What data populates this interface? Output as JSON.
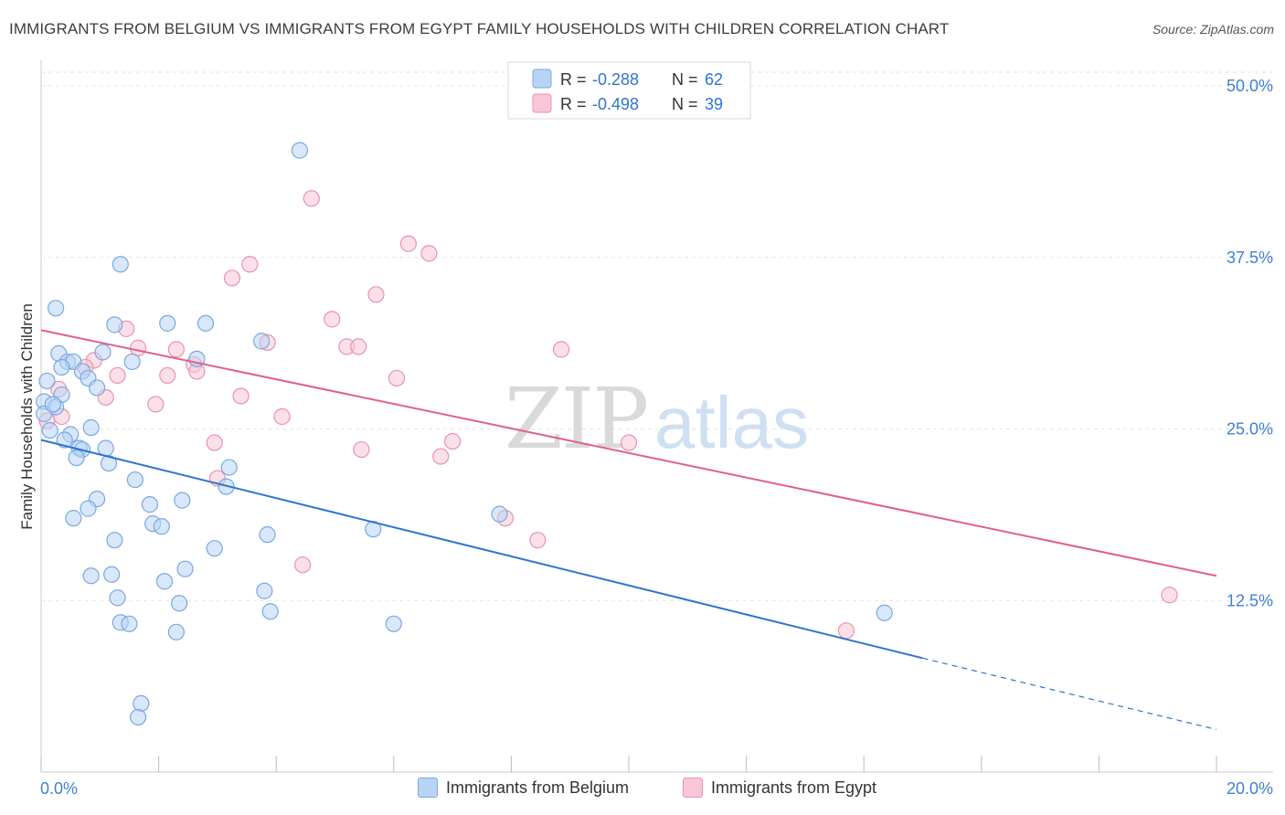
{
  "title": "IMMIGRANTS FROM BELGIUM VS IMMIGRANTS FROM EGYPT FAMILY HOUSEHOLDS WITH CHILDREN CORRELATION CHART",
  "source": "Source: ZipAtlas.com",
  "watermark": {
    "zip": "ZIP",
    "atlas": "atlas"
  },
  "colors": {
    "belgium_fill": "#b8d4f5",
    "belgium_stroke": "#7aa8e0",
    "belgium_line": "#2f74d0",
    "egypt_fill": "#f9c6d6",
    "egypt_stroke": "#eb92ae",
    "egypt_line": "#e0608a",
    "tick_label": "#3f7fd4",
    "grid": "#e3e3e3"
  },
  "stats_legend": {
    "rows": [
      {
        "r_label": "R =",
        "r_value": "-0.288",
        "n_label": "N =",
        "n_value": "62"
      },
      {
        "r_label": "R =",
        "r_value": "-0.498",
        "n_label": "N =",
        "n_value": "39"
      }
    ]
  },
  "chart_data": {
    "type": "scatter",
    "xlabel": "",
    "ylabel": "Family Households with Children",
    "xlim": [
      0,
      20
    ],
    "ylim": [
      0,
      51
    ],
    "x_tick_labels": [
      "0.0%",
      "20.0%"
    ],
    "y_ticks": [
      12.5,
      25.0,
      37.5,
      50.0
    ],
    "y_tick_labels": [
      "12.5%",
      "25.0%",
      "37.5%",
      "50.0%"
    ],
    "grid": "horizontal dashed",
    "legend_position": "top-center",
    "series": [
      {
        "name": "Immigrants from Belgium",
        "points": [
          [
            4.4,
            45.3
          ],
          [
            1.35,
            37.0
          ],
          [
            0.25,
            33.8
          ],
          [
            1.25,
            32.6
          ],
          [
            2.15,
            32.7
          ],
          [
            2.8,
            32.7
          ],
          [
            3.75,
            31.4
          ],
          [
            1.05,
            30.6
          ],
          [
            0.3,
            30.5
          ],
          [
            0.45,
            29.9
          ],
          [
            0.55,
            29.9
          ],
          [
            1.55,
            29.9
          ],
          [
            2.65,
            30.1
          ],
          [
            0.35,
            29.5
          ],
          [
            0.7,
            29.2
          ],
          [
            0.8,
            28.7
          ],
          [
            0.95,
            28.0
          ],
          [
            0.35,
            27.5
          ],
          [
            0.1,
            28.5
          ],
          [
            0.05,
            27.0
          ],
          [
            0.25,
            26.6
          ],
          [
            0.05,
            26.1
          ],
          [
            0.85,
            25.1
          ],
          [
            0.5,
            24.6
          ],
          [
            0.4,
            24.2
          ],
          [
            0.15,
            24.9
          ],
          [
            0.65,
            23.6
          ],
          [
            0.7,
            23.5
          ],
          [
            1.1,
            23.6
          ],
          [
            0.6,
            22.9
          ],
          [
            1.15,
            22.5
          ],
          [
            3.2,
            22.2
          ],
          [
            1.6,
            21.3
          ],
          [
            3.15,
            20.8
          ],
          [
            0.95,
            19.9
          ],
          [
            2.4,
            19.8
          ],
          [
            1.85,
            19.5
          ],
          [
            0.8,
            19.2
          ],
          [
            0.55,
            18.5
          ],
          [
            7.8,
            18.8
          ],
          [
            1.9,
            18.1
          ],
          [
            2.05,
            17.9
          ],
          [
            5.65,
            17.7
          ],
          [
            3.85,
            17.3
          ],
          [
            1.25,
            16.9
          ],
          [
            2.95,
            16.3
          ],
          [
            2.45,
            14.8
          ],
          [
            0.85,
            14.3
          ],
          [
            1.2,
            14.4
          ],
          [
            2.1,
            13.9
          ],
          [
            3.8,
            13.2
          ],
          [
            1.3,
            12.7
          ],
          [
            2.35,
            12.3
          ],
          [
            3.9,
            11.7
          ],
          [
            14.35,
            11.6
          ],
          [
            1.35,
            10.9
          ],
          [
            1.5,
            10.8
          ],
          [
            6.0,
            10.8
          ],
          [
            2.3,
            10.2
          ],
          [
            1.7,
            5.0
          ],
          [
            1.65,
            4.0
          ],
          [
            0.2,
            26.8
          ]
        ]
      },
      {
        "name": "Immigrants from Egypt",
        "points": [
          [
            4.6,
            41.8
          ],
          [
            6.25,
            38.5
          ],
          [
            6.6,
            37.8
          ],
          [
            3.55,
            37.0
          ],
          [
            3.25,
            36.0
          ],
          [
            5.7,
            34.8
          ],
          [
            4.95,
            33.0
          ],
          [
            1.45,
            32.3
          ],
          [
            3.85,
            31.3
          ],
          [
            1.65,
            30.9
          ],
          [
            2.3,
            30.8
          ],
          [
            5.2,
            31.0
          ],
          [
            5.4,
            31.0
          ],
          [
            8.85,
            30.8
          ],
          [
            0.9,
            30.0
          ],
          [
            0.75,
            29.5
          ],
          [
            2.6,
            29.7
          ],
          [
            2.65,
            29.2
          ],
          [
            1.3,
            28.9
          ],
          [
            2.15,
            28.9
          ],
          [
            6.05,
            28.7
          ],
          [
            0.3,
            27.9
          ],
          [
            1.1,
            27.3
          ],
          [
            3.4,
            27.4
          ],
          [
            1.95,
            26.8
          ],
          [
            4.1,
            25.9
          ],
          [
            0.1,
            25.6
          ],
          [
            0.35,
            25.9
          ],
          [
            2.95,
            24.0
          ],
          [
            7.0,
            24.1
          ],
          [
            10.0,
            24.0
          ],
          [
            5.45,
            23.5
          ],
          [
            6.8,
            23.0
          ],
          [
            3.0,
            21.4
          ],
          [
            7.9,
            18.5
          ],
          [
            8.45,
            16.9
          ],
          [
            4.45,
            15.1
          ],
          [
            19.2,
            12.9
          ],
          [
            13.7,
            10.3
          ]
        ]
      }
    ],
    "trendlines": [
      {
        "series": "Immigrants from Belgium",
        "x0": 0,
        "y0": 24.2,
        "x1": 15.0,
        "y1": 8.3,
        "dashed_to_x": 20,
        "dashed_to_y": 3.1
      },
      {
        "series": "Immigrants from Egypt",
        "x0": 0,
        "y0": 32.2,
        "x1": 20,
        "y1": 14.3
      }
    ]
  }
}
